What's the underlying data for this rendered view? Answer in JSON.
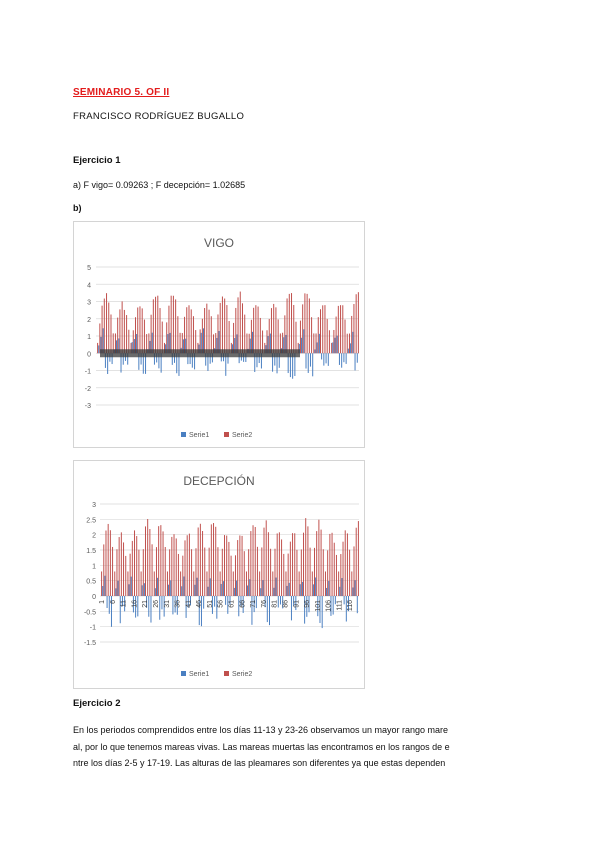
{
  "doc": {
    "title": "SEMINARIO 5. OF II",
    "author": "FRANCISCO RODRÍGUEZ BUGALLO",
    "ex1_heading": "Ejercicio 1",
    "ex1_a": "a) F vigo= 0.09263 ; F decepción= 1.02685",
    "ex1_b": "b)",
    "ex2_heading": "Ejercicio 2",
    "ex2_line1": "En los periodos comprendidos entre los días 11-13 y 23-26 observamos un mayor rango mare",
    "ex2_line2": "al, por lo que tenemos mareas vivas. Las mareas muertas las encontramos en los rangos de e",
    "ex2_line3": "ntre los días 2-5 y 17-19. Las alturas de las pleamares son diferentes ya que estas dependen"
  },
  "colors": {
    "serie1": "#4a7fc1",
    "serie2": "#c0504d",
    "grid": "#d9d9d9"
  },
  "chart_data": [
    {
      "type": "bar",
      "title": "VIGO",
      "ylim": [
        -3,
        5
      ],
      "yticks": [
        5,
        4,
        3,
        2,
        1,
        0,
        -1,
        -2,
        -3
      ],
      "grid": true,
      "legend_position": "bottom",
      "series": [
        {
          "name": "Serie1",
          "pattern": "semi-diurnal low/mid levels",
          "range": [
            -1.5,
            1.6
          ]
        },
        {
          "name": "Serie2",
          "pattern": "semi-diurnal high tide levels",
          "range": [
            0.5,
            3.8
          ]
        }
      ]
    },
    {
      "type": "bar",
      "title": "DECEPCIÓN",
      "ylim": [
        -1.5,
        3
      ],
      "yticks": [
        3,
        2.5,
        2,
        1.5,
        1,
        0.5,
        0,
        -0.5,
        -1,
        -1.5
      ],
      "xticks": [
        "1",
        "6",
        "11",
        "16",
        "21",
        "26",
        "31",
        "36",
        "41",
        "46",
        "51",
        "56",
        "61",
        "66",
        "71",
        "76",
        "81",
        "86",
        "91",
        "96",
        "101",
        "106",
        "111",
        "116"
      ],
      "grid": true,
      "legend_position": "bottom",
      "series": [
        {
          "name": "Serie1",
          "range": [
            -1.2,
            0.8
          ]
        },
        {
          "name": "Serie2",
          "range": [
            1.2,
            2.6
          ]
        }
      ]
    }
  ]
}
